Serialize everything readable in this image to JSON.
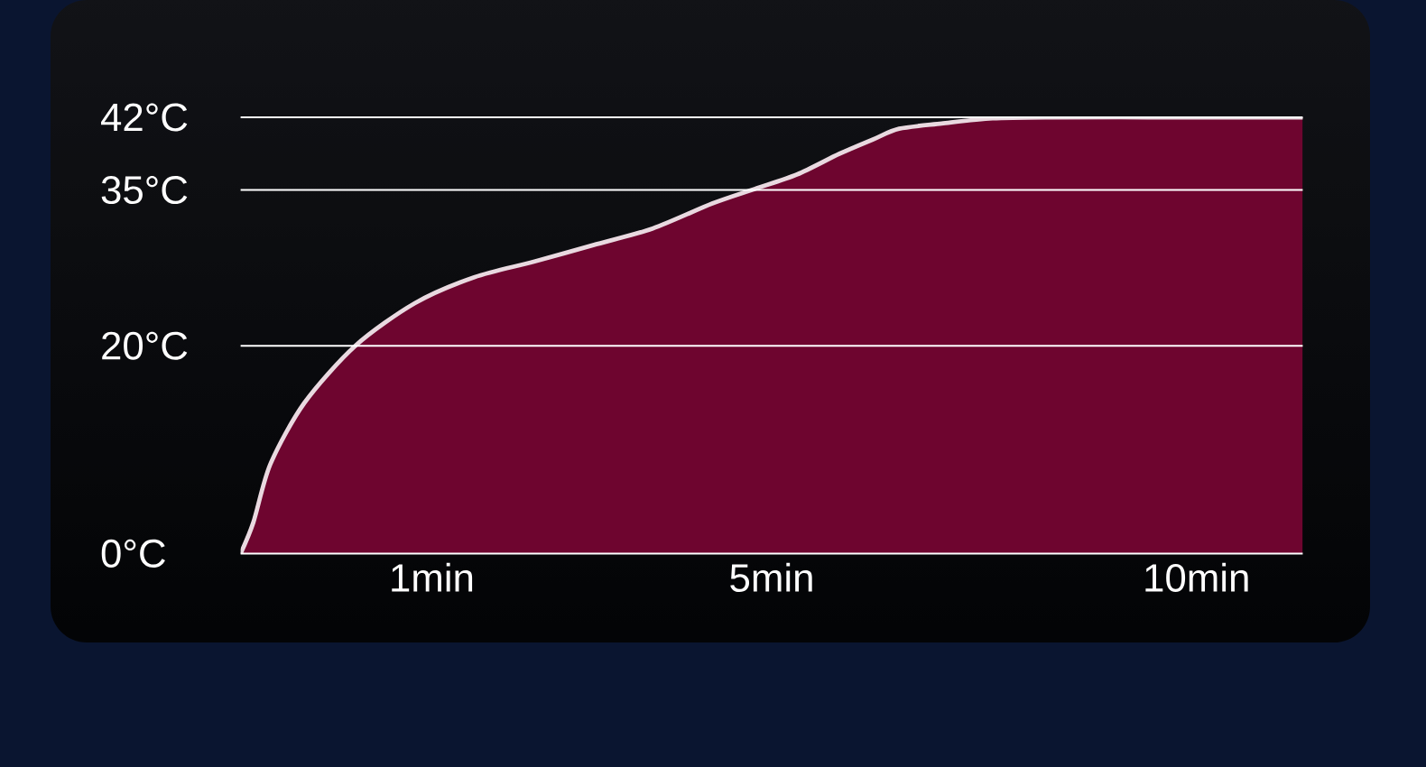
{
  "chart_data": {
    "type": "area",
    "x": [
      -1.25,
      -1.1,
      -0.9,
      -0.5,
      0.1,
      0.8,
      1.5,
      2.2,
      2.9,
      3.6,
      4.3,
      4.8,
      5.3,
      5.8,
      6.2,
      6.5,
      7.0,
      7.6,
      8.3,
      9.7,
      11.25
    ],
    "values": [
      0,
      3,
      8.6,
      14.5,
      20,
      24.1,
      26.6,
      28.1,
      29.7,
      31.3,
      33.7,
      35.1,
      36.5,
      38.5,
      39.9,
      40.9,
      41.4,
      41.9,
      42,
      42,
      42
    ],
    "color": "#6e052f",
    "xlim": [
      -1.25,
      11.25
    ],
    "xticks": [
      {
        "value": 1,
        "label": "1min"
      },
      {
        "value": 5,
        "label": "5min"
      },
      {
        "value": 10,
        "label": "10min"
      }
    ],
    "ylim": [
      0,
      42
    ],
    "yticks": [
      {
        "value": 0,
        "label": "0°C"
      },
      {
        "value": 20,
        "label": "20°C"
      },
      {
        "value": 35,
        "label": "35°C"
      },
      {
        "value": 42,
        "label": "42°C"
      }
    ],
    "grid": "y"
  }
}
